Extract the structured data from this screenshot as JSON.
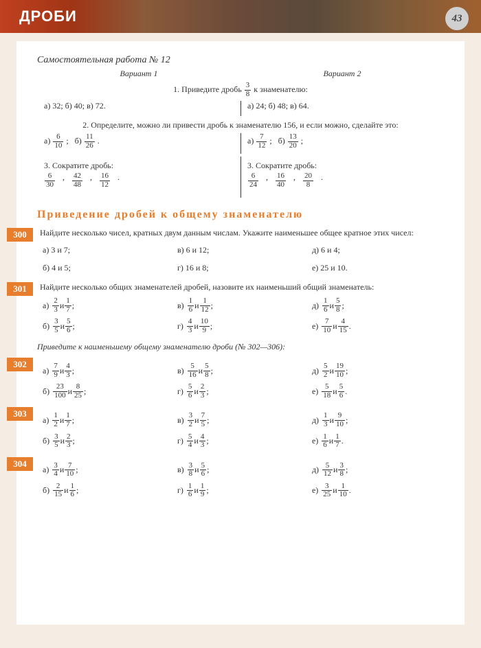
{
  "header": {
    "title": "ДРОБИ",
    "page": "43"
  },
  "sw": {
    "title": "Самостоятельная работа № 12",
    "v1": "Вариант 1",
    "v2": "Вариант 2",
    "t1_pre": "1. Приведите дробь",
    "t1_fn": "3",
    "t1_fd": "8",
    "t1_post": "к знаменателю:",
    "t1_v1": "а) 32;  б) 40;  в) 72.",
    "t1_v2": "а) 24;  б) 48;  в) 64.",
    "t2": "2. Определите, можно ли привести дробь к знаменателю 156, и если можно, сделайте это:",
    "t2_v1": [
      {
        "l": "а)",
        "n": "6",
        "d": "10",
        "s": ";"
      },
      {
        "l": "б)",
        "n": "11",
        "d": "26",
        "s": "."
      }
    ],
    "t2_v2": [
      {
        "l": "а)",
        "n": "7",
        "d": "12",
        "s": ";"
      },
      {
        "l": "б)",
        "n": "13",
        "d": "20",
        "s": ";"
      }
    ],
    "t3": "3. Сократите дробь:",
    "t3_v1": [
      {
        "n": "6",
        "d": "30"
      },
      {
        "n": "42",
        "d": "48"
      },
      {
        "n": "16",
        "d": "12"
      }
    ],
    "t3_v2": [
      {
        "n": "6",
        "d": "24"
      },
      {
        "n": "16",
        "d": "40"
      },
      {
        "n": "20",
        "d": "8"
      }
    ]
  },
  "section": "Приведение дробей к общему знаменателю",
  "p300": {
    "num": "300",
    "text": "Найдите несколько чисел, кратных двум данным числам. Укажите наименьшее общее кратное этих чисел:",
    "items": [
      "а) 3 и 7;",
      "в) 6 и 12;",
      "д) 6 и 4;",
      "б) 4 и 5;",
      "г) 16 и 8;",
      "е) 25 и 10."
    ]
  },
  "p301": {
    "num": "301",
    "text": "Найдите несколько общих знаменателей дробей, назовите их наименьший общий знаменатель:",
    "items": [
      {
        "l": "а)",
        "a": {
          "n": "2",
          "d": "3"
        },
        "b": {
          "n": "1",
          "d": "7"
        },
        "s": ";"
      },
      {
        "l": "в)",
        "a": {
          "n": "1",
          "d": "6"
        },
        "b": {
          "n": "1",
          "d": "12"
        },
        "s": ";"
      },
      {
        "l": "д)",
        "a": {
          "n": "1",
          "d": "6"
        },
        "b": {
          "n": "5",
          "d": "8"
        },
        "s": ";"
      },
      {
        "l": "б)",
        "a": {
          "n": "3",
          "d": "5"
        },
        "b": {
          "n": "5",
          "d": "6"
        },
        "s": ";"
      },
      {
        "l": "г)",
        "a": {
          "n": "4",
          "d": "3"
        },
        "b": {
          "n": "10",
          "d": "9"
        },
        "s": ";"
      },
      {
        "l": "е)",
        "a": {
          "n": "7",
          "d": "10"
        },
        "b": {
          "n": "4",
          "d": "15"
        },
        "s": "."
      }
    ]
  },
  "instr": "Приведите к наименьшему общему знаменателю дроби (№ 302—306):",
  "p302": {
    "num": "302",
    "items": [
      {
        "l": "а)",
        "a": {
          "n": "7",
          "d": "9"
        },
        "b": {
          "n": "4",
          "d": "3"
        },
        "s": ";"
      },
      {
        "l": "в)",
        "a": {
          "n": "5",
          "d": "16"
        },
        "b": {
          "n": "5",
          "d": "8"
        },
        "s": ";"
      },
      {
        "l": "д)",
        "a": {
          "n": "5",
          "d": "2"
        },
        "b": {
          "n": "19",
          "d": "10"
        },
        "s": ";"
      },
      {
        "l": "б)",
        "a": {
          "n": "23",
          "d": "100"
        },
        "b": {
          "n": "8",
          "d": "25"
        },
        "s": ";"
      },
      {
        "l": "г)",
        "a": {
          "n": "5",
          "d": "6"
        },
        "b": {
          "n": "2",
          "d": "3"
        },
        "s": ";"
      },
      {
        "l": "е)",
        "a": {
          "n": "5",
          "d": "18"
        },
        "b": {
          "n": "5",
          "d": "6"
        },
        "s": "."
      }
    ]
  },
  "p303": {
    "num": "303",
    "items": [
      {
        "l": "а)",
        "a": {
          "n": "1",
          "d": "2"
        },
        "b": {
          "n": "1",
          "d": "7"
        },
        "s": ";"
      },
      {
        "l": "в)",
        "a": {
          "n": "3",
          "d": "2"
        },
        "b": {
          "n": "7",
          "d": "5"
        },
        "s": ";"
      },
      {
        "l": "д)",
        "a": {
          "n": "1",
          "d": "3"
        },
        "b": {
          "n": "9",
          "d": "10"
        },
        "s": ";"
      },
      {
        "l": "б)",
        "a": {
          "n": "3",
          "d": "5"
        },
        "b": {
          "n": "2",
          "d": "3"
        },
        "s": ";"
      },
      {
        "l": "г)",
        "a": {
          "n": "5",
          "d": "4"
        },
        "b": {
          "n": "4",
          "d": "3"
        },
        "s": ";"
      },
      {
        "l": "е)",
        "a": {
          "n": "1",
          "d": "6"
        },
        "b": {
          "n": "1",
          "d": "7"
        },
        "s": "."
      }
    ]
  },
  "p304": {
    "num": "304",
    "items": [
      {
        "l": "а)",
        "a": {
          "n": "3",
          "d": "4"
        },
        "b": {
          "n": "7",
          "d": "10"
        },
        "s": ";"
      },
      {
        "l": "в)",
        "a": {
          "n": "3",
          "d": "8"
        },
        "b": {
          "n": "5",
          "d": "6"
        },
        "s": ";"
      },
      {
        "l": "д)",
        "a": {
          "n": "5",
          "d": "12"
        },
        "b": {
          "n": "3",
          "d": "8"
        },
        "s": ";"
      },
      {
        "l": "б)",
        "a": {
          "n": "2",
          "d": "15"
        },
        "b": {
          "n": "1",
          "d": "6"
        },
        "s": ";"
      },
      {
        "l": "г)",
        "a": {
          "n": "1",
          "d": "6"
        },
        "b": {
          "n": "1",
          "d": "9"
        },
        "s": ";"
      },
      {
        "l": "е)",
        "a": {
          "n": "3",
          "d": "25"
        },
        "b": {
          "n": "1",
          "d": "10"
        },
        "s": "."
      }
    ]
  },
  "and": "и"
}
